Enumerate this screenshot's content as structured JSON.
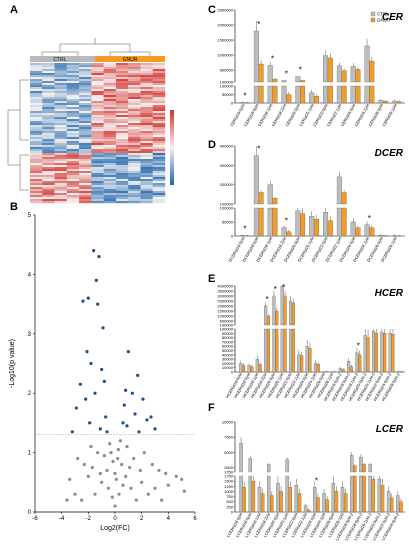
{
  "panels": {
    "a": "A",
    "b": "B",
    "c": "C",
    "d": "D",
    "e": "E",
    "f": "F"
  },
  "heatmap": {
    "groups": [
      "CTRL",
      "GNUR"
    ],
    "group_colors": [
      "#b9b9b9",
      "#f59a23"
    ],
    "colors": {
      "low": "#2166ac",
      "mid": "#f2f2f2",
      "high": "#d6312b"
    }
  },
  "chart_data": [
    {
      "type": "scatter",
      "panel": "B",
      "xlabel": "Log2(FC)",
      "ylabel": "-Log10(p value)",
      "xlim": [
        -6,
        6
      ],
      "ylim": [
        0,
        5
      ],
      "xticks": [
        -6,
        -4,
        -2,
        0,
        2,
        4,
        6
      ],
      "yticks": [
        0,
        1,
        2,
        3,
        4,
        5
      ],
      "threshold_y": 1.3,
      "colors": {
        "significant": "#1f4e8c",
        "ns": "#8c8c8c"
      },
      "significant_points": [
        [
          -1.6,
          4.4
        ],
        [
          -1.2,
          4.3
        ],
        [
          -1.4,
          3.9
        ],
        [
          -2.0,
          3.6
        ],
        [
          -2.4,
          3.55
        ],
        [
          -1.3,
          3.5
        ],
        [
          -0.9,
          3.1
        ],
        [
          -2.1,
          2.7
        ],
        [
          -1.8,
          2.5
        ],
        [
          -1.0,
          2.4
        ],
        [
          1.0,
          2.7
        ],
        [
          1.7,
          2.3
        ],
        [
          0.8,
          2.05
        ],
        [
          -2.6,
          2.15
        ],
        [
          -0.8,
          2.2
        ],
        [
          1.3,
          2.0
        ],
        [
          -1.5,
          2.0
        ],
        [
          2.1,
          1.9
        ],
        [
          0.7,
          1.8
        ],
        [
          -2.9,
          1.75
        ],
        [
          -0.7,
          1.6
        ],
        [
          1.5,
          1.65
        ],
        [
          2.4,
          1.55
        ],
        [
          -1.9,
          1.5
        ],
        [
          3.0,
          1.4
        ],
        [
          -3.2,
          1.35
        ],
        [
          0.9,
          1.45
        ],
        [
          -0.6,
          1.35
        ],
        [
          1.8,
          1.35
        ],
        [
          -1.1,
          1.4
        ],
        [
          2.7,
          1.6
        ],
        [
          -2.2,
          1.9
        ],
        [
          0.6,
          1.5
        ]
      ],
      "ns_points": [
        [
          -0.3,
          1.0
        ],
        [
          0.2,
          0.9
        ],
        [
          0.5,
          0.8
        ],
        [
          -0.6,
          0.7
        ],
        [
          0.8,
          0.6
        ],
        [
          -1.0,
          0.5
        ],
        [
          1.2,
          0.4
        ],
        [
          -1.5,
          0.3
        ],
        [
          1.6,
          0.2
        ],
        [
          2.0,
          0.5
        ],
        [
          -2.0,
          0.6
        ],
        [
          2.5,
          0.3
        ],
        [
          -2.5,
          0.2
        ],
        [
          3.0,
          0.4
        ],
        [
          -3.0,
          0.3
        ],
        [
          3.5,
          0.2
        ],
        [
          -3.6,
          0.2
        ],
        [
          4.0,
          0.45
        ],
        [
          4.6,
          0.6
        ],
        [
          5.0,
          0.55
        ],
        [
          5.2,
          0.35
        ],
        [
          0.0,
          0.1
        ],
        [
          0.3,
          0.3
        ],
        [
          -0.2,
          0.25
        ],
        [
          0.1,
          0.55
        ],
        [
          -0.8,
          0.95
        ],
        [
          0.9,
          1.1
        ],
        [
          -1.3,
          1.0
        ],
        [
          1.4,
          0.9
        ],
        [
          -1.8,
          1.1
        ],
        [
          2.2,
          1.0
        ],
        [
          -2.3,
          0.8
        ],
        [
          2.8,
          0.8
        ],
        [
          -2.8,
          0.9
        ],
        [
          3.3,
          0.7
        ],
        [
          0.4,
          1.2
        ],
        [
          -0.4,
          1.15
        ],
        [
          1.1,
          0.75
        ],
        [
          -1.1,
          0.65
        ],
        [
          1.9,
          0.7
        ],
        [
          -1.7,
          0.75
        ],
        [
          0.6,
          0.45
        ],
        [
          -0.5,
          0.4
        ],
        [
          3.8,
          0.65
        ],
        [
          -3.4,
          0.55
        ],
        [
          0.0,
          0.65
        ],
        [
          0.25,
          1.05
        ],
        [
          -0.15,
          0.85
        ]
      ]
    },
    {
      "type": "bar",
      "panel": "C",
      "title": "CER",
      "categories": [
        "CER(d16:0)/H",
        "CER(d18:0)/H",
        "CER(d18:1)/H",
        "CER(d18:2)/H",
        "CER(d20:0)/H",
        "CER(d20:1)/H",
        "CER(d22:0)/H",
        "CER(d22:1)/H",
        "CER(d24:0)/H",
        "CER(d24:1)/H",
        "CER(d26:0)/H",
        "CER(d26:1)/H"
      ],
      "series": [
        {
          "name": "CTRL",
          "color": "#bdbdbd",
          "values": [
            3000,
            1800000,
            650000,
            150000,
            280000,
            60000,
            980000,
            640000,
            620000,
            1300000,
            15000,
            12000
          ]
        },
        {
          "name": "GNUR",
          "color": "#f29b2a",
          "values": [
            1000,
            700000,
            200000,
            50000,
            150000,
            40000,
            900000,
            480000,
            520000,
            800000,
            10000,
            8000
          ]
        }
      ],
      "ylim": [
        0,
        2500000
      ],
      "y_break": {
        "lower": [
          0,
          100000
        ],
        "upper": [
          100000,
          2500000
        ]
      },
      "upper_ticks": [
        "100000",
        "500000",
        "1000000",
        "1500000",
        "2000000",
        "2500000"
      ],
      "lower_ticks": [
        "0",
        "50000",
        "100000"
      ],
      "significance": [
        "*",
        "*",
        "*",
        "*",
        "*",
        "",
        "",
        "",
        "",
        "",
        "",
        ""
      ],
      "legend": [
        "CTRL",
        "GNUR"
      ]
    },
    {
      "type": "bar",
      "panel": "D",
      "title": "DCER",
      "categories": [
        "DCER(d16:0)/H",
        "DCER(d18:0)/H",
        "DCER(d18:1)/H",
        "DCER(d18:2)/H",
        "DCER(d20:0)/H",
        "DCER(d20:1)/H",
        "DCER(d22:0)/H",
        "DCER(d22:1)/H",
        "DCER(d24:0)/H",
        "DCER(d24:1)/H",
        "DCER(d26:0)/H",
        "DCER(d26:1)/H"
      ],
      "series": [
        {
          "name": "CTRL",
          "color": "#bdbdbd",
          "values": [
            2000,
            350000,
            200000,
            30000,
            90000,
            70000,
            85000,
            240000,
            50000,
            40000,
            3000,
            1500
          ]
        },
        {
          "name": "GNUR",
          "color": "#f29b2a",
          "values": [
            800,
            160000,
            130000,
            15000,
            80000,
            60000,
            55000,
            160000,
            30000,
            30000,
            1000,
            500
          ]
        }
      ],
      "ylim": [
        0,
        400000
      ],
      "y_break": {
        "lower": [
          0,
          100000
        ],
        "upper": [
          100000,
          400000
        ]
      },
      "upper_ticks": [
        "100000",
        "200000",
        "300000",
        "400000"
      ],
      "lower_ticks": [
        "0",
        "50000",
        "100000"
      ],
      "significance": [
        "*",
        "*",
        "",
        "*",
        "",
        "",
        "",
        "",
        "",
        "*",
        "",
        ""
      ]
    },
    {
      "type": "bar",
      "panel": "E",
      "title": "HCER",
      "categories": [
        "HCER(d16:0)/H",
        "HCER(d18:0)/H",
        "HCER(d18:1)/H",
        "HCER(d18:2)/H",
        "HCER(d20:0)/H",
        "HCER(d20:1)/H",
        "HCER(d22:0)/H",
        "HCER(d22:1)/H",
        "HCER(d24:0)/H",
        "HCER(d24:1)/H",
        "HCER(d26:0)/H",
        "HCER(d26:1)/H",
        "HCER(d16:0)/H-2",
        "HCER(d18:0)/H-2",
        "HCER(d18:1)/H-2",
        "HCER(d20:0)/H-2",
        "HCER(d20:1)/H-2",
        "HCER(d22:0)/H-2",
        "HCER(d24:0)/H-2",
        "HCER(d26:0)/H-2"
      ],
      "series": [
        {
          "name": "CTRL",
          "color": "#bdbdbd",
          "values": [
            20000,
            15000,
            30000,
            2000000,
            3000000,
            4000000,
            2500000,
            40000,
            60000,
            20000,
            500,
            300,
            8000,
            25000,
            45000,
            85000,
            95000,
            92000,
            90000,
            1000
          ]
        },
        {
          "name": "GNUR",
          "color": "#f29b2a",
          "values": [
            15000,
            12000,
            18000,
            1000000,
            1500000,
            3000000,
            2300000,
            38000,
            55000,
            18000,
            400,
            200,
            6000,
            12000,
            40000,
            80000,
            90000,
            90000,
            88000,
            800
          ]
        }
      ],
      "ylim": [
        0,
        4000000
      ],
      "y_break": {
        "lower": [
          0,
          100000
        ],
        "upper": [
          100000,
          4000000
        ]
      },
      "upper_ticks": [
        "100000",
        "500000",
        "1000000",
        "1500000",
        "2000000",
        "2500000",
        "3000000",
        "3500000",
        "4000000"
      ],
      "lower_ticks": [
        "0",
        "10000",
        "20000",
        "30000",
        "40000",
        "50000",
        "60000",
        "70000",
        "80000",
        "90000",
        "100000"
      ],
      "significance": [
        "",
        "",
        "",
        "*",
        "*",
        "*",
        "",
        "",
        "",
        "",
        "",
        "",
        "",
        "",
        "*",
        "",
        "",
        "",
        "",
        ""
      ]
    },
    {
      "type": "bar",
      "panel": "F",
      "title": "LCER",
      "categories": [
        "LCER(d16:0)/H",
        "LCER(d18:0)/H",
        "LCER(d18:1)/H",
        "LCER(d18:2)/H",
        "LCER(d20:0)/H",
        "LCER(d20:1)/H",
        "LCER(d22:0)/H",
        "LCER(d22:1)/H",
        "LCER(d24:0)/H",
        "LCER(d24:1)/H",
        "LCER(d26:0)/H",
        "LCER(d26:1)/H",
        "LCER(d16:0)/H-2",
        "LCER(d18:0)/H-2",
        "LCER(d18:1)/H-2",
        "LCER(d20:0)/H-2",
        "LCER(d22:0)/H-2",
        "LCER(d24:0)/H-2"
      ],
      "series": [
        {
          "name": "CTRL",
          "color": "#bdbdbd",
          "values": [
            6500,
            4000,
            1200,
            3000,
            1400,
            3800,
            1300,
            300,
            1200,
            900,
            1400,
            1200,
            4500,
            4200,
            3000,
            1600,
            1000,
            800
          ]
        },
        {
          "name": "GNUR",
          "color": "#f29b2a",
          "values": [
            1200,
            1500,
            900,
            800,
            1000,
            1200,
            900,
            100,
            700,
            600,
            1000,
            900,
            2800,
            3000,
            1600,
            1300,
            700,
            500
          ]
        }
      ],
      "ylim": [
        0,
        10000
      ],
      "y_break": {
        "lower": [
          0,
          1750
        ],
        "upper": [
          1750,
          10000
        ]
      },
      "upper_ticks": [
        "1750",
        "2500",
        "5000",
        "7500",
        "10000"
      ],
      "lower_ticks": [
        "0",
        "250",
        "500",
        "750",
        "1000",
        "1250",
        "1500",
        "1750"
      ],
      "significance": [
        "",
        "",
        "",
        "",
        "",
        "",
        "",
        "",
        "*",
        "",
        "",
        "",
        "",
        "",
        "",
        "",
        "",
        ""
      ]
    }
  ]
}
